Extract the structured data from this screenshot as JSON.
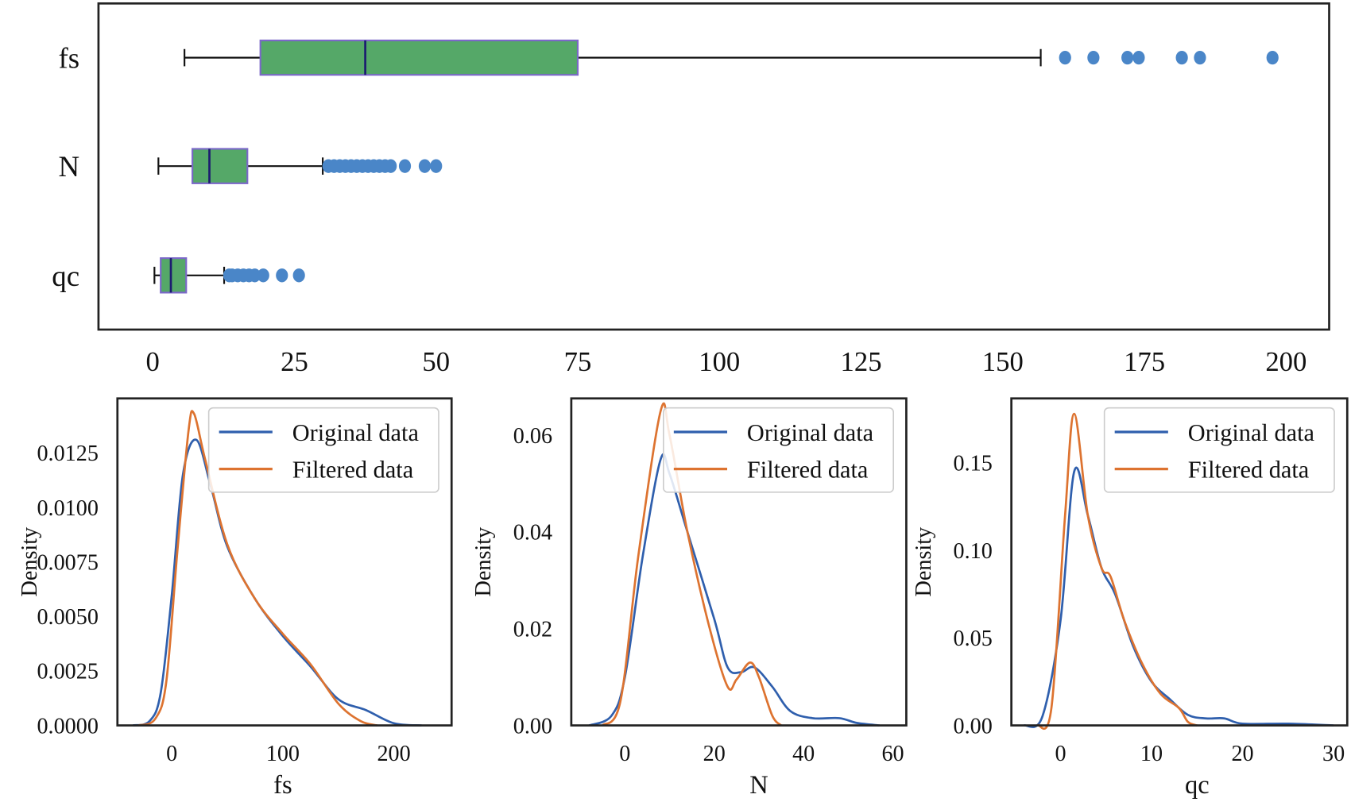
{
  "chart_data": [
    {
      "type": "box",
      "orientation": "horizontal",
      "categories": [
        "fs",
        "N",
        "qc"
      ],
      "xticks": [
        0,
        25,
        50,
        75,
        100,
        125,
        150,
        175,
        200
      ],
      "xlim": [
        -10,
        207
      ],
      "box_color": "#55a868",
      "outlier_color": "#4a86c8",
      "boxes": [
        {
          "name": "fs",
          "whislo": 5.6,
          "q1": 19,
          "med": 37.5,
          "q3": 75,
          "whishi": 156.7,
          "fliers": [
            161,
            166,
            172,
            174,
            181.6,
            184.8,
            197.6
          ]
        },
        {
          "name": "N",
          "whislo": 1,
          "q1": 7,
          "med": 10,
          "q3": 16.7,
          "whishi": 30,
          "fliers": [
            31,
            32,
            33,
            34,
            35,
            36,
            37,
            38,
            39,
            40,
            41,
            42,
            44.5,
            48,
            50
          ]
        },
        {
          "name": "qc",
          "whislo": 0.3,
          "q1": 1.4,
          "med": 3.2,
          "q3": 5.9,
          "whishi": 12.6,
          "fliers": [
            13.5,
            14,
            15,
            16,
            17,
            18,
            19.5,
            22.8,
            25.8
          ]
        }
      ]
    },
    {
      "type": "line",
      "xlabel": "fs",
      "ylabel": "Density",
      "xlim": [
        -49,
        252
      ],
      "ylim": [
        0,
        0.015
      ],
      "xticks": [
        0,
        100,
        200
      ],
      "yticks": [
        "0.0000",
        "0.0025",
        "0.0050",
        "0.0075",
        "0.0100",
        "0.0125"
      ],
      "legend": "top-right",
      "series": [
        {
          "name": "Original data",
          "color": "#2f5fad",
          "x": [
            -35,
            -20,
            -10,
            0,
            10,
            22,
            35,
            50,
            75,
            100,
            125,
            150,
            175,
            200,
            225
          ],
          "y": [
            0,
            0.0002,
            0.0015,
            0.006,
            0.0115,
            0.0131,
            0.011,
            0.0082,
            0.0058,
            0.0041,
            0.0027,
            0.0012,
            0.0007,
            0.0001,
            0
          ]
        },
        {
          "name": "Filtered data",
          "color": "#dd7330",
          "x": [
            -30,
            -15,
            -5,
            5,
            15,
            20,
            30,
            50,
            75,
            100,
            125,
            150,
            170,
            185
          ],
          "y": [
            0,
            0.0003,
            0.002,
            0.008,
            0.0135,
            0.0143,
            0.0122,
            0.0083,
            0.0058,
            0.0042,
            0.0028,
            0.001,
            0.0002,
            0
          ]
        }
      ]
    },
    {
      "type": "line",
      "xlabel": "N",
      "ylabel": "Density",
      "xlim": [
        -12,
        63
      ],
      "ylim": [
        0,
        0.0676
      ],
      "xticks": [
        0,
        20,
        40,
        60
      ],
      "yticks": [
        "0.00",
        "0.02",
        "0.04",
        "0.06"
      ],
      "legend": "top-right",
      "series": [
        {
          "name": "Original data",
          "color": "#2f5fad",
          "x": [
            -8,
            -3,
            0,
            4,
            8,
            10,
            14,
            20,
            23,
            26,
            29,
            33,
            37,
            42,
            48,
            52,
            57
          ],
          "y": [
            0,
            0.002,
            0.01,
            0.035,
            0.055,
            0.052,
            0.04,
            0.022,
            0.012,
            0.011,
            0.012,
            0.008,
            0.003,
            0.0015,
            0.0015,
            0.0005,
            0
          ]
        },
        {
          "name": "Filtered data",
          "color": "#dd7330",
          "x": [
            -5,
            -1,
            3,
            8,
            10,
            14,
            19,
            23,
            25,
            28,
            30,
            33,
            35
          ],
          "y": [
            0,
            0.005,
            0.035,
            0.065,
            0.06,
            0.04,
            0.02,
            0.008,
            0.0095,
            0.013,
            0.01,
            0.002,
            0
          ]
        }
      ]
    },
    {
      "type": "line",
      "xlabel": "qc",
      "ylabel": "Density",
      "xlim": [
        -5.4,
        31.5
      ],
      "ylim": [
        0,
        0.1868
      ],
      "xticks": [
        0,
        10,
        20,
        30
      ],
      "yticks": [
        "0.00",
        "0.05",
        "0.10",
        "0.15"
      ],
      "legend": "top-right",
      "series": [
        {
          "name": "Original data",
          "color": "#2f5fad",
          "x": [
            -4,
            -2,
            0,
            1.5,
            3,
            4.5,
            6,
            8,
            10,
            12,
            14,
            16,
            18,
            20,
            25,
            30
          ],
          "y": [
            0,
            0.005,
            0.06,
            0.145,
            0.12,
            0.09,
            0.075,
            0.045,
            0.025,
            0.015,
            0.006,
            0.004,
            0.004,
            0.001,
            0.001,
            0
          ]
        },
        {
          "name": "Filtered data",
          "color": "#dd7330",
          "x": [
            -2.5,
            -1,
            0.5,
            1.5,
            3,
            4.5,
            5.5,
            7,
            9,
            11,
            13,
            14,
            15
          ],
          "y": [
            0,
            0.01,
            0.12,
            0.178,
            0.12,
            0.09,
            0.085,
            0.06,
            0.035,
            0.018,
            0.01,
            0.002,
            0
          ]
        }
      ]
    }
  ]
}
